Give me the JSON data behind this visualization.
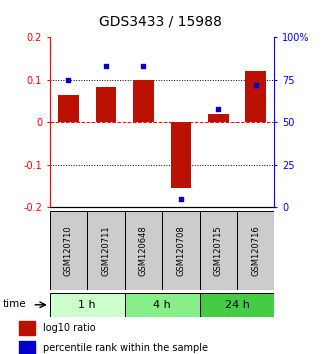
{
  "title": "GDS3433 / 15988",
  "samples": [
    "GSM120710",
    "GSM120711",
    "GSM120648",
    "GSM120708",
    "GSM120715",
    "GSM120716"
  ],
  "log10_ratio": [
    0.065,
    0.082,
    0.1,
    -0.155,
    0.018,
    0.12
  ],
  "percentile_rank": [
    75,
    83,
    83,
    5,
    58,
    72
  ],
  "bar_color": "#bb1100",
  "dot_color": "#0000cc",
  "ylim_left": [
    -0.2,
    0.2
  ],
  "ylim_right": [
    0,
    100
  ],
  "yticks_left": [
    -0.2,
    -0.1,
    0.0,
    0.1,
    0.2
  ],
  "ytick_labels_left": [
    "-0.2",
    "-0.1",
    "0",
    "0.1",
    "0.2"
  ],
  "yticks_right": [
    0,
    25,
    50,
    75,
    100
  ],
  "ytick_labels_right": [
    "0",
    "25",
    "50",
    "75",
    "100%"
  ],
  "hlines": [
    0.1,
    0.0,
    -0.1
  ],
  "hline_styles": [
    "dotted",
    "dashed",
    "dotted"
  ],
  "hline_colors": [
    "black",
    "red",
    "black"
  ],
  "time_groups": [
    {
      "label": "1 h",
      "start": 0,
      "end": 2,
      "color": "#ccffcc"
    },
    {
      "label": "4 h",
      "start": 2,
      "end": 4,
      "color": "#88ee88"
    },
    {
      "label": "24 h",
      "start": 4,
      "end": 6,
      "color": "#44cc44"
    }
  ],
  "legend_items": [
    {
      "label": "log10 ratio",
      "color": "#bb1100"
    },
    {
      "label": "percentile rank within the sample",
      "color": "#0000cc"
    }
  ],
  "bar_width": 0.55,
  "sample_box_color": "#cccccc",
  "time_label": "time"
}
